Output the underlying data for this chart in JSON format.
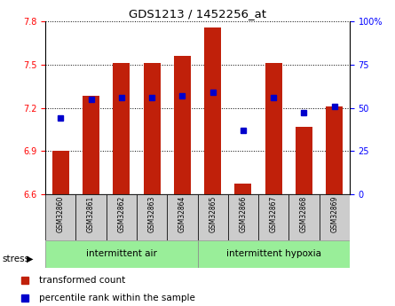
{
  "title": "GDS1213 / 1452256_at",
  "samples": [
    "GSM32860",
    "GSM32861",
    "GSM32862",
    "GSM32863",
    "GSM32864",
    "GSM32865",
    "GSM32866",
    "GSM32867",
    "GSM32868",
    "GSM32869"
  ],
  "transformed_counts": [
    6.905,
    7.285,
    7.51,
    7.51,
    7.56,
    7.76,
    6.675,
    7.51,
    7.07,
    7.21
  ],
  "percentile_ranks": [
    44,
    55,
    56,
    56,
    57,
    59,
    37,
    56,
    47,
    51
  ],
  "ylim_left": [
    6.6,
    7.8
  ],
  "ylim_right": [
    0,
    100
  ],
  "yticks_left": [
    6.6,
    6.9,
    7.2,
    7.5,
    7.8
  ],
  "yticks_right": [
    0,
    25,
    50,
    75,
    100
  ],
  "bar_color": "#c0200a",
  "dot_color": "#0000cc",
  "group1_label": "intermittent air",
  "group2_label": "intermittent hypoxia",
  "group_bg_color": "#99ee99",
  "tick_label_bg": "#cccccc",
  "stress_label": "stress",
  "legend_bar_label": "transformed count",
  "legend_dot_label": "percentile rank within the sample",
  "bar_width": 0.55,
  "base_value": 6.6
}
